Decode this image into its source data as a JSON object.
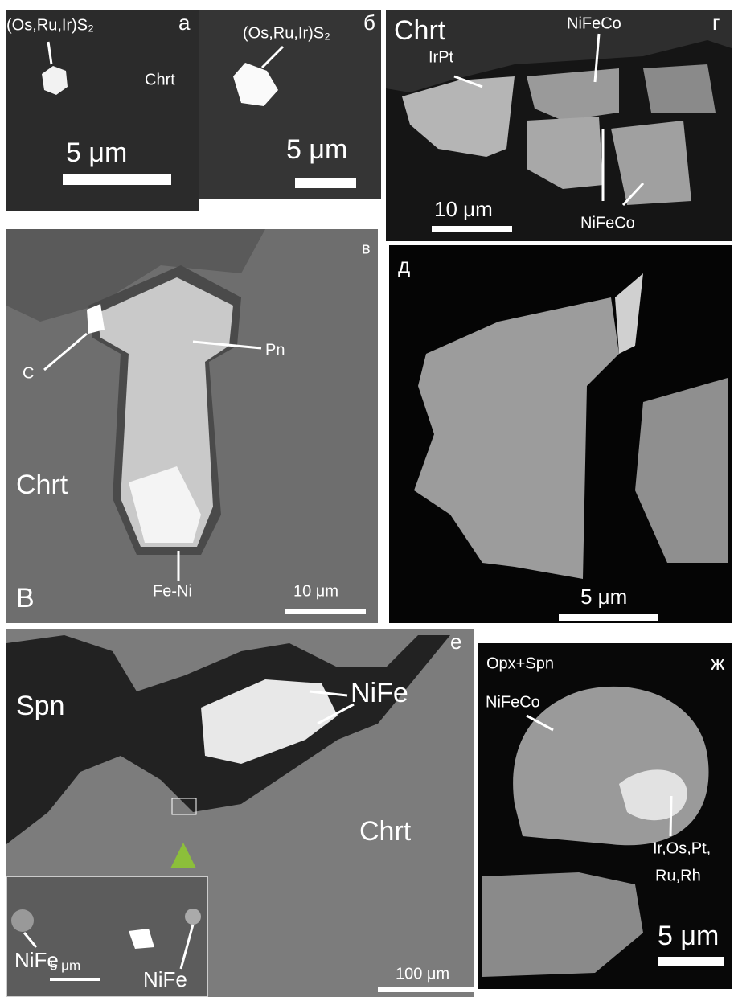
{
  "panels": [
    {
      "letter": "а",
      "labels": [
        "(Os,Ru,Ir)S₂",
        "Chrt"
      ],
      "scale": "5 μm"
    },
    {
      "letter": "б",
      "labels": [
        "(Os,Ru,Ir)S₂"
      ],
      "scale": "5 μm"
    },
    {
      "letter": "г",
      "labels": [
        "Chrt",
        "NiFeCo",
        "IrPt",
        "NiFeCo"
      ],
      "scale": "10 μm"
    },
    {
      "letter": "в",
      "labels": [
        "C",
        "Pn",
        "Chrt",
        "Fe-Ni",
        "В"
      ],
      "scale": "10 μm"
    },
    {
      "letter": "д",
      "labels": [],
      "scale": "5 μm"
    },
    {
      "letter": "е",
      "labels": [
        "Spn",
        "NiFe",
        "Chrt"
      ],
      "scale": "100 μm",
      "inset": {
        "labels": [
          "NiFe",
          "NiFe"
        ],
        "scale": "5 μm"
      }
    },
    {
      "letter": "ж",
      "labels": [
        "Opx+Spn",
        "NiFeCo",
        "Ir,Os,Pt,",
        "Ru,Rh"
      ],
      "scale": "5 μm"
    }
  ]
}
